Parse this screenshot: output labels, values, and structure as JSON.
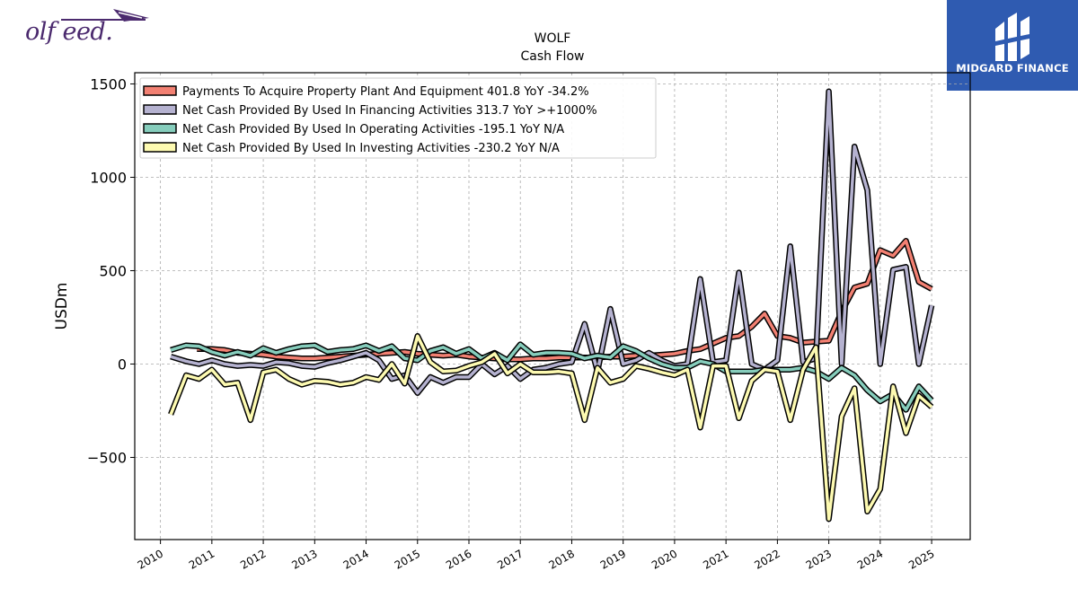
{
  "logo_left": {
    "text": "olf     eed."
  },
  "brand": {
    "name": "MIDGARD FINANCE",
    "color": "#2f5bb1"
  },
  "chart_data": {
    "type": "line",
    "title": "WOLF",
    "subtitle": "Cash Flow",
    "ylabel": "USDm",
    "xlabel": "",
    "ylim": [
      -940,
      1560
    ],
    "xlim": [
      2009.5,
      2025.75
    ],
    "yticks": [
      1500,
      1000,
      500,
      0,
      -500
    ],
    "ytick_labels": [
      "1500",
      "1000",
      "500",
      "0",
      "−500"
    ],
    "xticks": [
      2010,
      2011,
      2012,
      2013,
      2014,
      2015,
      2016,
      2017,
      2018,
      2019,
      2020,
      2021,
      2022,
      2023,
      2024,
      2025
    ],
    "xtick_labels": [
      "2010",
      "2011",
      "2012",
      "2013",
      "2014",
      "2015",
      "2016",
      "2017",
      "2018",
      "2019",
      "2020",
      "2021",
      "2022",
      "2023",
      "2024",
      "2025"
    ],
    "grid": true,
    "legend_position": "top-left",
    "series": [
      {
        "name": "Payments To Acquire Property Plant And Equipment",
        "legend": "Payments To Acquire Property Plant And Equipment  401.8 YoY -34.2%",
        "color": "#f28072",
        "points": [
          [
            2010.71,
            80
          ],
          [
            2011.0,
            80
          ],
          [
            2011.25,
            75
          ],
          [
            2011.5,
            60
          ],
          [
            2011.75,
            55
          ],
          [
            2012.0,
            50
          ],
          [
            2012.25,
            40
          ],
          [
            2012.5,
            35
          ],
          [
            2012.75,
            30
          ],
          [
            2013.0,
            30
          ],
          [
            2013.25,
            35
          ],
          [
            2013.5,
            40
          ],
          [
            2013.75,
            45
          ],
          [
            2014.0,
            50
          ],
          [
            2014.25,
            55
          ],
          [
            2014.5,
            60
          ],
          [
            2014.75,
            65
          ],
          [
            2015.0,
            55
          ],
          [
            2015.25,
            50
          ],
          [
            2015.5,
            45
          ],
          [
            2015.75,
            50
          ],
          [
            2016.0,
            40
          ],
          [
            2016.25,
            35
          ],
          [
            2016.5,
            30
          ],
          [
            2016.75,
            25
          ],
          [
            2017.0,
            25
          ],
          [
            2017.25,
            30
          ],
          [
            2017.5,
            30
          ],
          [
            2017.75,
            35
          ],
          [
            2018.0,
            35
          ],
          [
            2018.25,
            35
          ],
          [
            2018.5,
            35
          ],
          [
            2018.75,
            40
          ],
          [
            2019.0,
            40
          ],
          [
            2019.25,
            45
          ],
          [
            2019.5,
            45
          ],
          [
            2019.75,
            50
          ],
          [
            2020.0,
            55
          ],
          [
            2020.25,
            70
          ],
          [
            2020.5,
            80
          ],
          [
            2020.75,
            110
          ],
          [
            2021.0,
            140
          ],
          [
            2021.25,
            150
          ],
          [
            2021.5,
            200
          ],
          [
            2021.75,
            270
          ],
          [
            2022.0,
            150
          ],
          [
            2022.25,
            140
          ],
          [
            2022.5,
            115
          ],
          [
            2022.75,
            120
          ],
          [
            2023.0,
            125
          ],
          [
            2023.25,
            280
          ],
          [
            2023.5,
            410
          ],
          [
            2023.75,
            430
          ],
          [
            2024.0,
            610
          ],
          [
            2024.25,
            580
          ],
          [
            2024.5,
            660
          ],
          [
            2024.75,
            440
          ],
          [
            2025.0,
            402
          ]
        ]
      },
      {
        "name": "Net Cash Provided By Used In Financing Activities",
        "legend": "Net Cash Provided By Used In Financing Activities  313.7 YoY >+1000%",
        "color": "#b5b2d0",
        "points": [
          [
            2010.2,
            40
          ],
          [
            2010.5,
            15
          ],
          [
            2010.75,
            0
          ],
          [
            2011.0,
            20
          ],
          [
            2011.25,
            0
          ],
          [
            2011.5,
            -10
          ],
          [
            2011.75,
            -5
          ],
          [
            2012.0,
            -10
          ],
          [
            2012.25,
            10
          ],
          [
            2012.5,
            5
          ],
          [
            2012.75,
            -10
          ],
          [
            2013.0,
            -15
          ],
          [
            2013.25,
            5
          ],
          [
            2013.5,
            20
          ],
          [
            2013.75,
            40
          ],
          [
            2014.0,
            60
          ],
          [
            2014.25,
            20
          ],
          [
            2014.5,
            -80
          ],
          [
            2014.75,
            -60
          ],
          [
            2015.0,
            -155
          ],
          [
            2015.25,
            -70
          ],
          [
            2015.5,
            -100
          ],
          [
            2015.75,
            -70
          ],
          [
            2016.0,
            -70
          ],
          [
            2016.25,
            0
          ],
          [
            2016.5,
            -55
          ],
          [
            2016.75,
            -10
          ],
          [
            2017.0,
            -80
          ],
          [
            2017.25,
            -30
          ],
          [
            2017.5,
            -20
          ],
          [
            2017.75,
            0
          ],
          [
            2018.0,
            10
          ],
          [
            2018.25,
            215
          ],
          [
            2018.5,
            -40
          ],
          [
            2018.75,
            295
          ],
          [
            2019.0,
            0
          ],
          [
            2019.25,
            20
          ],
          [
            2019.5,
            60
          ],
          [
            2019.75,
            20
          ],
          [
            2020.0,
            -10
          ],
          [
            2020.25,
            0
          ],
          [
            2020.5,
            455
          ],
          [
            2020.75,
            10
          ],
          [
            2021.0,
            20
          ],
          [
            2021.25,
            490
          ],
          [
            2021.5,
            0
          ],
          [
            2021.75,
            -30
          ],
          [
            2022.0,
            20
          ],
          [
            2022.25,
            630
          ],
          [
            2022.5,
            10
          ],
          [
            2022.75,
            30
          ],
          [
            2023.0,
            1460
          ],
          [
            2023.25,
            0
          ],
          [
            2023.5,
            1165
          ],
          [
            2023.75,
            930
          ],
          [
            2024.0,
            0
          ],
          [
            2024.25,
            505
          ],
          [
            2024.5,
            520
          ],
          [
            2024.75,
            0
          ],
          [
            2025.0,
            314
          ]
        ]
      },
      {
        "name": "Net Cash Provided By Used In Operating Activities",
        "legend": "Net Cash Provided By Used In Operating Activities  -195.1 YoY N/A",
        "color": "#86cdbc",
        "points": [
          [
            2010.2,
            75
          ],
          [
            2010.5,
            100
          ],
          [
            2010.75,
            95
          ],
          [
            2011.0,
            65
          ],
          [
            2011.25,
            45
          ],
          [
            2011.5,
            65
          ],
          [
            2011.75,
            45
          ],
          [
            2012.0,
            85
          ],
          [
            2012.25,
            60
          ],
          [
            2012.5,
            80
          ],
          [
            2012.75,
            95
          ],
          [
            2013.0,
            100
          ],
          [
            2013.25,
            65
          ],
          [
            2013.5,
            75
          ],
          [
            2013.75,
            80
          ],
          [
            2014.0,
            100
          ],
          [
            2014.25,
            70
          ],
          [
            2014.5,
            95
          ],
          [
            2014.75,
            30
          ],
          [
            2015.0,
            20
          ],
          [
            2015.25,
            70
          ],
          [
            2015.5,
            90
          ],
          [
            2015.75,
            55
          ],
          [
            2016.0,
            80
          ],
          [
            2016.25,
            30
          ],
          [
            2016.5,
            60
          ],
          [
            2016.75,
            20
          ],
          [
            2017.0,
            105
          ],
          [
            2017.25,
            50
          ],
          [
            2017.5,
            60
          ],
          [
            2017.75,
            60
          ],
          [
            2018.0,
            55
          ],
          [
            2018.25,
            30
          ],
          [
            2018.5,
            45
          ],
          [
            2018.75,
            35
          ],
          [
            2019.0,
            95
          ],
          [
            2019.25,
            70
          ],
          [
            2019.5,
            30
          ],
          [
            2019.75,
            0
          ],
          [
            2020.0,
            -20
          ],
          [
            2020.25,
            -20
          ],
          [
            2020.5,
            15
          ],
          [
            2020.75,
            0
          ],
          [
            2021.0,
            -40
          ],
          [
            2021.25,
            -40
          ],
          [
            2021.5,
            -40
          ],
          [
            2021.75,
            -30
          ],
          [
            2022.0,
            -30
          ],
          [
            2022.25,
            -30
          ],
          [
            2022.5,
            -20
          ],
          [
            2022.75,
            -40
          ],
          [
            2023.0,
            -80
          ],
          [
            2023.25,
            -20
          ],
          [
            2023.5,
            -60
          ],
          [
            2023.75,
            -140
          ],
          [
            2024.0,
            -200
          ],
          [
            2024.25,
            -160
          ],
          [
            2024.5,
            -245
          ],
          [
            2024.75,
            -120
          ],
          [
            2025.0,
            -195
          ]
        ]
      },
      {
        "name": "Net Cash Provided By Used In Investing Activities",
        "legend": "Net Cash Provided By Used In Investing Activities  -230.2 YoY N/A",
        "color": "#fdfab1",
        "points": [
          [
            2010.2,
            -270
          ],
          [
            2010.5,
            -60
          ],
          [
            2010.75,
            -80
          ],
          [
            2011.0,
            -30
          ],
          [
            2011.25,
            -110
          ],
          [
            2011.5,
            -100
          ],
          [
            2011.75,
            -300
          ],
          [
            2012.0,
            -45
          ],
          [
            2012.25,
            -30
          ],
          [
            2012.5,
            -80
          ],
          [
            2012.75,
            -110
          ],
          [
            2013.0,
            -90
          ],
          [
            2013.25,
            -95
          ],
          [
            2013.5,
            -110
          ],
          [
            2013.75,
            -100
          ],
          [
            2014.0,
            -70
          ],
          [
            2014.25,
            -85
          ],
          [
            2014.5,
            0
          ],
          [
            2014.75,
            -105
          ],
          [
            2015.0,
            150
          ],
          [
            2015.25,
            10
          ],
          [
            2015.5,
            -40
          ],
          [
            2015.75,
            -35
          ],
          [
            2016.0,
            -10
          ],
          [
            2016.25,
            10
          ],
          [
            2016.5,
            55
          ],
          [
            2016.75,
            -50
          ],
          [
            2017.0,
            0
          ],
          [
            2017.25,
            -45
          ],
          [
            2017.5,
            -45
          ],
          [
            2017.75,
            -40
          ],
          [
            2018.0,
            -50
          ],
          [
            2018.25,
            -300
          ],
          [
            2018.5,
            -20
          ],
          [
            2018.75,
            -100
          ],
          [
            2019.0,
            -80
          ],
          [
            2019.25,
            -10
          ],
          [
            2019.5,
            -25
          ],
          [
            2019.75,
            -45
          ],
          [
            2020.0,
            -60
          ],
          [
            2020.25,
            -30
          ],
          [
            2020.5,
            -340
          ],
          [
            2020.75,
            -10
          ],
          [
            2021.0,
            -10
          ],
          [
            2021.25,
            -290
          ],
          [
            2021.5,
            -90
          ],
          [
            2021.75,
            -30
          ],
          [
            2022.0,
            -40
          ],
          [
            2022.25,
            -300
          ],
          [
            2022.5,
            -30
          ],
          [
            2022.75,
            90
          ],
          [
            2023.0,
            -830
          ],
          [
            2023.25,
            -280
          ],
          [
            2023.5,
            -130
          ],
          [
            2023.75,
            -790
          ],
          [
            2024.0,
            -670
          ],
          [
            2024.25,
            -120
          ],
          [
            2024.5,
            -370
          ],
          [
            2024.75,
            -170
          ],
          [
            2025.0,
            -230
          ]
        ]
      }
    ]
  }
}
